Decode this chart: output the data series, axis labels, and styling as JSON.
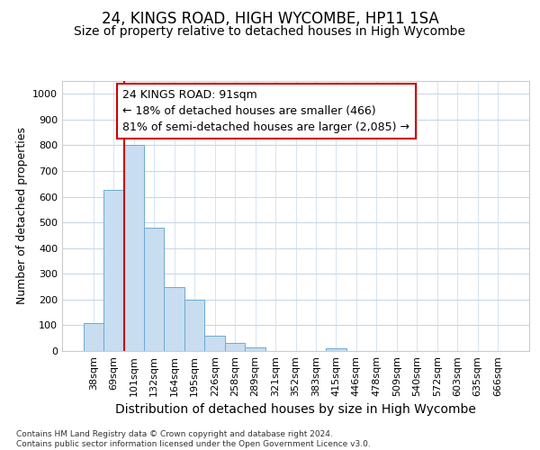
{
  "title1": "24, KINGS ROAD, HIGH WYCOMBE, HP11 1SA",
  "title2": "Size of property relative to detached houses in High Wycombe",
  "xlabel": "Distribution of detached houses by size in High Wycombe",
  "ylabel": "Number of detached properties",
  "categories": [
    "38sqm",
    "69sqm",
    "101sqm",
    "132sqm",
    "164sqm",
    "195sqm",
    "226sqm",
    "258sqm",
    "289sqm",
    "321sqm",
    "352sqm",
    "383sqm",
    "415sqm",
    "446sqm",
    "478sqm",
    "509sqm",
    "540sqm",
    "572sqm",
    "603sqm",
    "635sqm",
    "666sqm"
  ],
  "values": [
    110,
    625,
    800,
    480,
    250,
    200,
    60,
    30,
    15,
    0,
    0,
    0,
    10,
    0,
    0,
    0,
    0,
    0,
    0,
    0,
    0
  ],
  "bar_color": "#c8ddf0",
  "bar_edge_color": "#6aaad4",
  "vline_color": "#cc0000",
  "vline_pos": 1.5,
  "annotation_text": "24 KINGS ROAD: 91sqm\n← 18% of detached houses are smaller (466)\n81% of semi-detached houses are larger (2,085) →",
  "annotation_box_facecolor": "#ffffff",
  "annotation_box_edgecolor": "#cc0000",
  "ylim": [
    0,
    1050
  ],
  "yticks": [
    0,
    100,
    200,
    300,
    400,
    500,
    600,
    700,
    800,
    900,
    1000
  ],
  "background_color": "#ffffff",
  "grid_color": "#c8d8e8",
  "footer": "Contains HM Land Registry data © Crown copyright and database right 2024.\nContains public sector information licensed under the Open Government Licence v3.0.",
  "title1_fontsize": 12,
  "title2_fontsize": 10,
  "xlabel_fontsize": 10,
  "ylabel_fontsize": 9,
  "tick_fontsize": 8,
  "annotation_fontsize": 9
}
